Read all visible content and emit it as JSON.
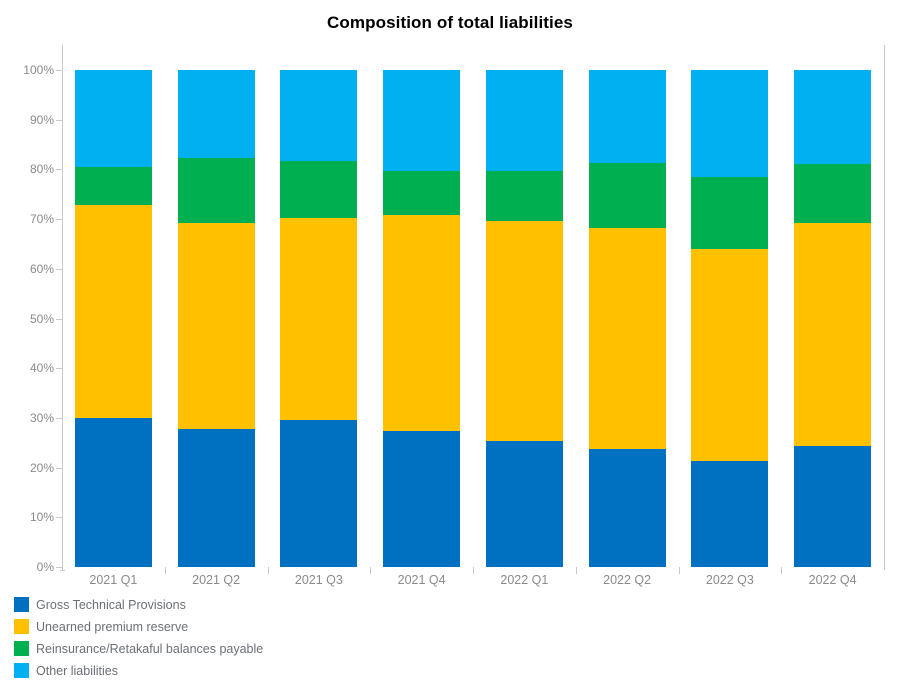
{
  "title": "Composition of total liabilities",
  "chart_data": {
    "type": "bar",
    "subtype": "stacked-100-percent-column",
    "title": "Composition of total liabilities",
    "xlabel": "",
    "ylabel": "",
    "unit": "%",
    "ylim": [
      0,
      100
    ],
    "ytick_labels": [
      "0%",
      "10%",
      "20%",
      "30%",
      "40%",
      "50%",
      "60%",
      "70%",
      "80%",
      "90%",
      "100%"
    ],
    "grid": false,
    "legend_position": "bottom-left",
    "categories": [
      "2021 Q1",
      "2021 Q2",
      "2021 Q3",
      "2021 Q4",
      "2022 Q1",
      "2022 Q2",
      "2022 Q3",
      "2022 Q4"
    ],
    "series": [
      {
        "name": "Gross Technical Provisions",
        "color": "#0070C0",
        "values": [
          30.0,
          27.7,
          29.6,
          27.4,
          25.4,
          23.7,
          21.4,
          24.4
        ]
      },
      {
        "name": "Unearned premium reserve",
        "color": "#FFC000",
        "values": [
          42.9,
          41.5,
          40.6,
          43.5,
          44.3,
          44.5,
          42.6,
          44.8
        ]
      },
      {
        "name": "Reinsurance/Retakaful balances payable",
        "color": "#00B050",
        "values": [
          7.5,
          13.0,
          11.5,
          8.7,
          9.9,
          13.1,
          14.5,
          11.8
        ]
      },
      {
        "name": "Other liabilities",
        "color": "#00B0F0",
        "values": [
          19.6,
          17.8,
          18.3,
          20.4,
          20.4,
          18.7,
          21.5,
          19.0
        ]
      }
    ]
  },
  "colors": {
    "axis_line": "#c9c9c9",
    "axis_text": "#8a8a8a",
    "legend_text": "#6b7076",
    "title_text": "#000000",
    "background": "#ffffff"
  }
}
